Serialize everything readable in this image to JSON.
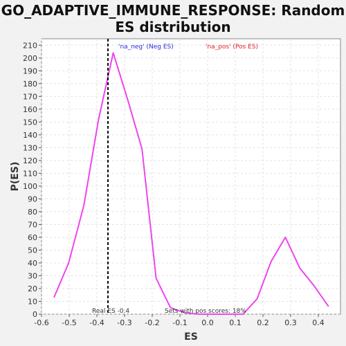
{
  "chart_data": {
    "type": "line",
    "title_line1": "GO_ADAPTIVE_IMMUNE_RESPONSE: Random",
    "title_line2": "ES distribution",
    "xlabel": "ES",
    "ylabel": "P(ES)",
    "xlim": [
      -0.6,
      0.48
    ],
    "ylim": [
      0,
      215
    ],
    "xticks": [
      -0.6,
      -0.5,
      -0.4,
      -0.3,
      -0.2,
      -0.1,
      0.0,
      0.1,
      0.2,
      0.3,
      0.4
    ],
    "xtick_labels": [
      "-0.6",
      "-0.5",
      "-0.4",
      "-0.3",
      "-0.2",
      "-0.1",
      "0.0",
      "0.1",
      "0.2",
      "0.3",
      "0.4"
    ],
    "yticks": [
      0,
      10,
      20,
      30,
      40,
      50,
      60,
      70,
      80,
      90,
      100,
      110,
      120,
      130,
      140,
      150,
      160,
      170,
      180,
      190,
      200,
      210
    ],
    "ytick_labels": [
      "0",
      "10",
      "20",
      "30",
      "40",
      "50",
      "60",
      "70",
      "80",
      "90",
      "100",
      "110",
      "120",
      "130",
      "140",
      "150",
      "160",
      "170",
      "180",
      "190",
      "200",
      "210"
    ],
    "grid": true,
    "series": [
      {
        "color": "#ee44ee",
        "x": [
          -0.555,
          -0.502,
          -0.447,
          -0.394,
          -0.341,
          -0.288,
          -0.237,
          -0.186,
          -0.134,
          -0.081,
          -0.029,
          0.024,
          0.076,
          0.128,
          0.179,
          0.229,
          0.281,
          0.333,
          0.385,
          0.437
        ],
        "y": [
          13,
          40,
          85,
          152,
          204,
          167,
          129,
          28,
          5,
          1,
          0,
          0,
          0,
          0,
          12,
          41,
          60,
          36,
          22,
          6
        ]
      }
    ],
    "real_es": -0.36,
    "real_es_label": "Real ES -0.4",
    "pos_scores_label": "Sets with pos scores: 18%",
    "legend": [
      {
        "label": "'na_neg' (Neg ES)",
        "color": "#2b2bd6"
      },
      {
        "label": "'na_pos' (Pos ES)",
        "color": "#e02020"
      }
    ]
  }
}
